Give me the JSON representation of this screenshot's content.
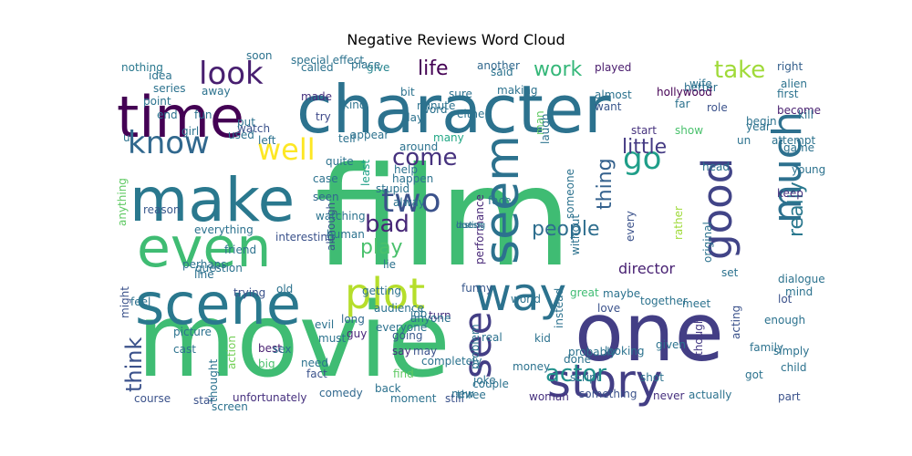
{
  "chart_data": {
    "type": "wordcloud",
    "title": "Negative Reviews Word Cloud",
    "background": "#ffffff",
    "colormap": "viridis",
    "words": [
      {
        "text": "film",
        "weight": 1.0,
        "color": "#3fbc73"
      },
      {
        "text": "movie",
        "weight": 0.96,
        "color": "#3fbc73"
      },
      {
        "text": "one",
        "weight": 0.74,
        "color": "#433e85"
      },
      {
        "text": "character",
        "weight": 0.62,
        "color": "#2c728e"
      },
      {
        "text": "time",
        "weight": 0.52,
        "color": "#440154"
      },
      {
        "text": "make",
        "weight": 0.5,
        "color": "#2a788e"
      },
      {
        "text": "even",
        "weight": 0.48,
        "color": "#3fbc73"
      },
      {
        "text": "scene",
        "weight": 0.48,
        "color": "#2a788e"
      },
      {
        "text": "story",
        "weight": 0.44,
        "color": "#433e85"
      },
      {
        "text": "seem",
        "weight": 0.38,
        "color": "#2c728e"
      },
      {
        "text": "way",
        "weight": 0.36,
        "color": "#2c728e"
      },
      {
        "text": "good",
        "weight": 0.34,
        "color": "#414487"
      },
      {
        "text": "much",
        "weight": 0.32,
        "color": "#2d708e"
      },
      {
        "text": "plot",
        "weight": 0.28,
        "color": "#b5de2b"
      },
      {
        "text": "see",
        "weight": 0.26,
        "color": "#433e85"
      },
      {
        "text": "know",
        "weight": 0.24,
        "color": "#31688e"
      },
      {
        "text": "well",
        "weight": 0.22,
        "color": "#fde725"
      },
      {
        "text": "look",
        "weight": 0.21,
        "color": "#481f70"
      },
      {
        "text": "two",
        "weight": 0.2,
        "color": "#3b528b"
      },
      {
        "text": "go",
        "weight": 0.2,
        "color": "#1f9e89"
      },
      {
        "text": "bad",
        "weight": 0.17,
        "color": "#482878"
      },
      {
        "text": "come",
        "weight": 0.16,
        "color": "#46327e"
      },
      {
        "text": "actor",
        "weight": 0.16,
        "color": "#21918c"
      },
      {
        "text": "take",
        "weight": 0.15,
        "color": "#a0da39"
      },
      {
        "text": "work",
        "weight": 0.14,
        "color": "#35b779"
      },
      {
        "text": "people",
        "weight": 0.14,
        "color": "#2e6e8e"
      },
      {
        "text": "really",
        "weight": 0.14,
        "color": "#2a788e"
      },
      {
        "text": "life",
        "weight": 0.13,
        "color": "#440154"
      },
      {
        "text": "little",
        "weight": 0.13,
        "color": "#443a83"
      },
      {
        "text": "thing",
        "weight": 0.13,
        "color": "#34618d"
      },
      {
        "text": "play",
        "weight": 0.12,
        "color": "#4ac16d"
      },
      {
        "text": "think",
        "weight": 0.12,
        "color": "#3b528b"
      },
      {
        "text": "director",
        "weight": 0.09,
        "color": "#482173"
      },
      {
        "text": "made",
        "weight": 0.07,
        "color": "#46307e"
      },
      {
        "text": "nothing",
        "weight": 0.07,
        "color": "#2a788e"
      },
      {
        "text": "another",
        "weight": 0.07,
        "color": "#31688e"
      },
      {
        "text": "played",
        "weight": 0.07,
        "color": "#481a6c"
      },
      {
        "text": "better",
        "weight": 0.07,
        "color": "#2d708e"
      },
      {
        "text": "right",
        "weight": 0.07,
        "color": "#35608d"
      },
      {
        "text": "give",
        "weight": 0.07,
        "color": "#25848e"
      },
      {
        "text": "almost",
        "weight": 0.07,
        "color": "#2c728e"
      },
      {
        "text": "want",
        "weight": 0.07,
        "color": "#39568c"
      },
      {
        "text": "role",
        "weight": 0.07,
        "color": "#3b528b"
      },
      {
        "text": "first",
        "weight": 0.07,
        "color": "#2c728e"
      },
      {
        "text": "become",
        "weight": 0.07,
        "color": "#481f70"
      },
      {
        "text": "lot",
        "weight": 0.07,
        "color": "#3b528b"
      },
      {
        "text": "set",
        "weight": 0.07,
        "color": "#2c728e"
      },
      {
        "text": "try",
        "weight": 0.07,
        "color": "#3e4989"
      },
      {
        "text": "point",
        "weight": 0.07,
        "color": "#2c728e"
      },
      {
        "text": "end",
        "weight": 0.07,
        "color": "#2c728e"
      },
      {
        "text": "watch",
        "weight": 0.07,
        "color": "#3b528b"
      },
      {
        "text": "many",
        "weight": 0.07,
        "color": "#22a785"
      },
      {
        "text": "start",
        "weight": 0.07,
        "color": "#46327e"
      },
      {
        "text": "show",
        "weight": 0.07,
        "color": "#4ac16d"
      },
      {
        "text": "around",
        "weight": 0.07,
        "color": "#2c728e"
      },
      {
        "text": "least",
        "weight": 0.07,
        "color": "#1fa187"
      },
      {
        "text": "seen",
        "weight": 0.07,
        "color": "#31688e"
      },
      {
        "text": "reason",
        "weight": 0.07,
        "color": "#38588c"
      },
      {
        "text": "anything",
        "weight": 0.07,
        "color": "#5ec962"
      },
      {
        "text": "although",
        "weight": 0.07,
        "color": "#3b528b"
      },
      {
        "text": "every",
        "weight": 0.07,
        "color": "#3b528b"
      },
      {
        "text": "rather",
        "weight": 0.07,
        "color": "#9fda3a"
      },
      {
        "text": "original",
        "weight": 0.07,
        "color": "#2c728e"
      },
      {
        "text": "line",
        "weight": 0.07,
        "color": "#2d708e"
      },
      {
        "text": "might",
        "weight": 0.07,
        "color": "#3b528b"
      },
      {
        "text": "funny",
        "weight": 0.07,
        "color": "#38588c"
      },
      {
        "text": "world",
        "weight": 0.07,
        "color": "#2c728e"
      },
      {
        "text": "great",
        "weight": 0.07,
        "color": "#3fbc73"
      },
      {
        "text": "audience",
        "weight": 0.07,
        "color": "#2c728e"
      },
      {
        "text": "long",
        "weight": 0.07,
        "color": "#31688e"
      },
      {
        "text": "love",
        "weight": 0.07,
        "color": "#3b528b"
      },
      {
        "text": "acting",
        "weight": 0.07,
        "color": "#3b528b"
      },
      {
        "text": "enough",
        "weight": 0.07,
        "color": "#2c728e"
      },
      {
        "text": "though",
        "weight": 0.07,
        "color": "#443983"
      },
      {
        "text": "guy",
        "weight": 0.07,
        "color": "#482878"
      },
      {
        "text": "going",
        "weight": 0.07,
        "color": "#38588c"
      },
      {
        "text": "say",
        "weight": 0.07,
        "color": "#46307e"
      },
      {
        "text": "may",
        "weight": 0.07,
        "color": "#3b528b"
      },
      {
        "text": "best",
        "weight": 0.07,
        "color": "#481f70"
      },
      {
        "text": "big",
        "weight": 0.07,
        "color": "#4ac16d"
      },
      {
        "text": "action",
        "weight": 0.07,
        "color": "#73d056"
      },
      {
        "text": "fact",
        "weight": 0.07,
        "color": "#3b528b"
      },
      {
        "text": "find",
        "weight": 0.07,
        "color": "#5ec962"
      },
      {
        "text": "script",
        "weight": 0.07,
        "color": "#2c728e"
      },
      {
        "text": "probably",
        "weight": 0.07,
        "color": "#2c728e"
      },
      {
        "text": "comedy",
        "weight": 0.07,
        "color": "#31688e"
      },
      {
        "text": "back",
        "weight": 0.07,
        "color": "#2c728e"
      },
      {
        "text": "moment",
        "weight": 0.07,
        "color": "#2c728e"
      },
      {
        "text": "still",
        "weight": 0.07,
        "color": "#3b528b"
      },
      {
        "text": "new",
        "weight": 0.07,
        "color": "#2c728e"
      },
      {
        "text": "woman",
        "weight": 0.07,
        "color": "#46307e"
      },
      {
        "text": "something",
        "weight": 0.07,
        "color": "#3b528b"
      },
      {
        "text": "never",
        "weight": 0.07,
        "color": "#46307e"
      },
      {
        "text": "actually",
        "weight": 0.07,
        "color": "#2c728e"
      },
      {
        "text": "got",
        "weight": 0.07,
        "color": "#2c728e"
      },
      {
        "text": "part",
        "weight": 0.07,
        "color": "#3b528b"
      },
      {
        "text": "course",
        "weight": 0.07,
        "color": "#3b528b"
      },
      {
        "text": "star",
        "weight": 0.07,
        "color": "#3b528b"
      },
      {
        "text": "unfortunately",
        "weight": 0.07,
        "color": "#46307e"
      },
      {
        "text": "turn",
        "weight": 0.07,
        "color": "#46307e"
      },
      {
        "text": "problem",
        "weight": 0.07,
        "color": "#2c728e"
      },
      {
        "text": "real",
        "weight": 0.07,
        "color": "#2c728e"
      },
      {
        "text": "performance",
        "weight": 0.07,
        "color": "#482878"
      },
      {
        "text": "without",
        "weight": 0.07,
        "color": "#2c728e"
      },
      {
        "text": "instead",
        "weight": 0.07,
        "color": "#2c728e"
      },
      {
        "text": "dialogue",
        "weight": 0.07,
        "color": "#2c728e"
      },
      {
        "text": "keep",
        "weight": 0.07,
        "color": "#46307e"
      },
      {
        "text": "interesting",
        "weight": 0.07,
        "color": "#3b528b"
      },
      {
        "text": "man",
        "weight": 0.07,
        "color": "#5ec962"
      },
      {
        "text": "u",
        "weight": 0.07,
        "color": "#2c728e"
      },
      {
        "text": "need",
        "weight": 0.07,
        "color": "#2c728e"
      },
      {
        "text": "trying",
        "weight": 0.07,
        "color": "#3b528b"
      },
      {
        "text": "picture",
        "weight": 0.07,
        "color": "#2c728e"
      },
      {
        "text": "cast",
        "weight": 0.07,
        "color": "#2c728e"
      },
      {
        "text": "head",
        "weight": 0.07,
        "color": "#2c728e"
      },
      {
        "text": "year",
        "weight": 0.07,
        "color": "#2c728e"
      },
      {
        "text": "hollywood",
        "weight": 0.07,
        "color": "#440154"
      },
      {
        "text": "far",
        "weight": 0.07,
        "color": "#2c728e"
      },
      {
        "text": "wife",
        "weight": 0.07,
        "color": "#2c728e"
      },
      {
        "text": "making",
        "weight": 0.07,
        "color": "#2c728e"
      },
      {
        "text": "idea",
        "weight": 0.07,
        "color": "#2c728e"
      },
      {
        "text": "series",
        "weight": 0.07,
        "color": "#2c728e"
      },
      {
        "text": "girl",
        "weight": 0.07,
        "color": "#2c728e"
      },
      {
        "text": "kind",
        "weight": 0.07,
        "color": "#2c728e"
      },
      {
        "text": "minute",
        "weight": 0.07,
        "color": "#2c728e"
      },
      {
        "text": "day",
        "weight": 0.07,
        "color": "#2c728e"
      },
      {
        "text": "sure",
        "weight": 0.07,
        "color": "#2c728e"
      },
      {
        "text": "put",
        "weight": 0.07,
        "color": "#2c728e"
      },
      {
        "text": "help",
        "weight": 0.07,
        "color": "#2c728e"
      },
      {
        "text": "happen",
        "weight": 0.07,
        "color": "#2c728e"
      },
      {
        "text": "laugh",
        "weight": 0.07,
        "color": "#2c728e"
      },
      {
        "text": "friend",
        "weight": 0.07,
        "color": "#2c728e"
      },
      {
        "text": "looking",
        "weight": 0.07,
        "color": "#2c728e"
      },
      {
        "text": "shot",
        "weight": 0.07,
        "color": "#2c728e"
      },
      {
        "text": "given",
        "weight": 0.07,
        "color": "#2c728e"
      },
      {
        "text": "simply",
        "weight": 0.07,
        "color": "#2c728e"
      },
      {
        "text": "kid",
        "weight": 0.07,
        "color": "#2c728e"
      },
      {
        "text": "three",
        "weight": 0.07,
        "color": "#2c728e"
      },
      {
        "text": "child",
        "weight": 0.07,
        "color": "#2c728e"
      },
      {
        "text": "joke",
        "weight": 0.07,
        "color": "#2c728e"
      },
      {
        "text": "someone",
        "weight": 0.07,
        "color": "#2c728e"
      },
      {
        "text": "everything",
        "weight": 0.07,
        "color": "#2c728e"
      },
      {
        "text": "thought",
        "weight": 0.07,
        "color": "#2c728e"
      },
      {
        "text": "completely",
        "weight": 0.07,
        "color": "#2c728e"
      },
      {
        "text": "alway",
        "weight": 0.07,
        "color": "#2c728e"
      },
      {
        "text": "stupid",
        "weight": 0.07,
        "color": "#2c728e"
      },
      {
        "text": "begin",
        "weight": 0.07,
        "color": "#2c728e"
      },
      {
        "text": "attempt",
        "weight": 0.07,
        "color": "#2c728e"
      },
      {
        "text": "appear",
        "weight": 0.07,
        "color": "#2c728e"
      },
      {
        "text": "quite",
        "weight": 0.07,
        "color": "#2c728e"
      },
      {
        "text": "face",
        "weight": 0.07,
        "color": "#2c728e"
      },
      {
        "text": "getting",
        "weight": 0.07,
        "color": "#2c728e"
      },
      {
        "text": "perhaps",
        "weight": 0.07,
        "color": "#2c728e"
      },
      {
        "text": "question",
        "weight": 0.07,
        "color": "#2c728e"
      },
      {
        "text": "mind",
        "weight": 0.07,
        "color": "#2c728e"
      },
      {
        "text": "together",
        "weight": 0.07,
        "color": "#2c728e"
      },
      {
        "text": "couple",
        "weight": 0.07,
        "color": "#2c728e"
      },
      {
        "text": "money",
        "weight": 0.07,
        "color": "#2c728e"
      },
      {
        "text": "done",
        "weight": 0.07,
        "color": "#2c728e"
      },
      {
        "text": "must",
        "weight": 0.07,
        "color": "#2c728e"
      },
      {
        "text": "screen",
        "weight": 0.07,
        "color": "#2c728e"
      },
      {
        "text": "sex",
        "weight": 0.07,
        "color": "#2c728e"
      },
      {
        "text": "soon",
        "weight": 0.07,
        "color": "#2c728e"
      },
      {
        "text": "called",
        "weight": 0.07,
        "color": "#2c728e"
      },
      {
        "text": "special effect",
        "weight": 0.07,
        "color": "#2c728e"
      },
      {
        "text": "place",
        "weight": 0.07,
        "color": "#2c728e"
      },
      {
        "text": "said",
        "weight": 0.07,
        "color": "#2c728e"
      },
      {
        "text": "alien",
        "weight": 0.07,
        "color": "#2c728e"
      },
      {
        "text": "word",
        "weight": 0.07,
        "color": "#2c728e"
      },
      {
        "text": "bit",
        "weight": 0.07,
        "color": "#2c728e"
      },
      {
        "text": "either",
        "weight": 0.07,
        "color": "#2c728e"
      },
      {
        "text": "away",
        "weight": 0.07,
        "color": "#2c728e"
      },
      {
        "text": "fun",
        "weight": 0.07,
        "color": "#2c728e"
      },
      {
        "text": "left",
        "weight": 0.07,
        "color": "#2c728e"
      },
      {
        "text": "used",
        "weight": 0.07,
        "color": "#2c728e"
      },
      {
        "text": "tell",
        "weight": 0.07,
        "color": "#2c728e"
      },
      {
        "text": "kill",
        "weight": 0.07,
        "color": "#2c728e"
      },
      {
        "text": "young",
        "weight": 0.07,
        "color": "#2c728e"
      },
      {
        "text": "watching",
        "weight": 0.07,
        "color": "#2c728e"
      },
      {
        "text": "human",
        "weight": 0.07,
        "color": "#2c728e"
      },
      {
        "text": "maybe",
        "weight": 0.07,
        "color": "#2c728e"
      },
      {
        "text": "meet",
        "weight": 0.07,
        "color": "#2c728e"
      },
      {
        "text": "family",
        "weight": 0.07,
        "color": "#2c728e"
      },
      {
        "text": "old",
        "weight": 0.07,
        "color": "#2c728e"
      },
      {
        "text": "everyone",
        "weight": 0.07,
        "color": "#2c728e"
      },
      {
        "text": "evil",
        "weight": 0.07,
        "color": "#2c728e"
      },
      {
        "text": "job",
        "weight": 0.07,
        "color": "#2c728e"
      },
      {
        "text": "anyone",
        "weight": 0.07,
        "color": "#2c728e"
      },
      {
        "text": "case",
        "weight": 0.07,
        "color": "#2c728e"
      },
      {
        "text": "feel",
        "weight": 0.07,
        "color": "#2c728e"
      },
      {
        "text": "lie",
        "weight": 0.07,
        "color": "#2c728e"
      },
      {
        "text": "game",
        "weight": 0.07,
        "color": "#2c728e"
      },
      {
        "text": "un",
        "weight": 0.07,
        "color": "#2c728e"
      },
      {
        "text": "during",
        "weight": 0.07,
        "color": "#2c728e"
      },
      {
        "text": "last",
        "weight": 0.07,
        "color": "#2c728e"
      },
      {
        "text": "doesn",
        "weight": 0.07,
        "color": "#2c728e"
      }
    ]
  }
}
